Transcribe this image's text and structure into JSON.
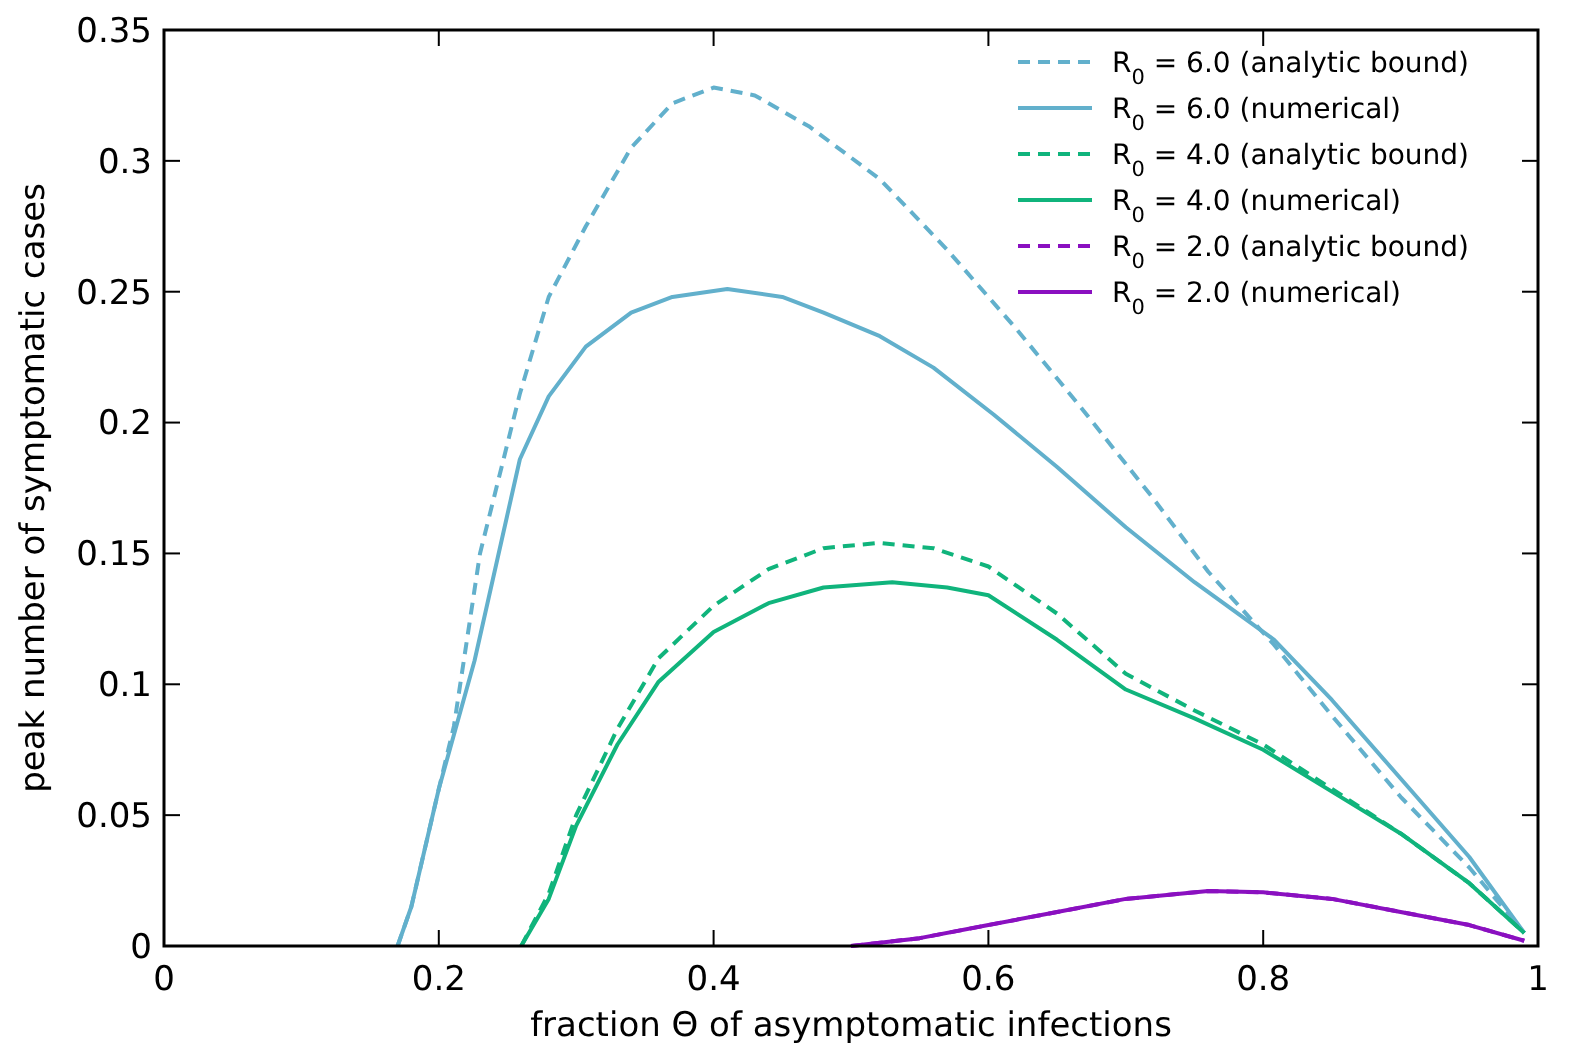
{
  "chart_data": {
    "type": "line",
    "xlabel": "fraction Θ of asymptomatic infections",
    "ylabel": "peak number of symptomatic cases",
    "xlim": [
      0,
      1
    ],
    "ylim": [
      0,
      0.35
    ],
    "xticks": [
      0,
      0.2,
      0.4,
      0.6,
      0.8,
      1
    ],
    "yticks": [
      0,
      0.05,
      0.1,
      0.15,
      0.2,
      0.25,
      0.3,
      0.35
    ],
    "legend": "top right",
    "marker": "none",
    "series": [
      {
        "name": "R$_{0}$ = 6.0 (analytic bound)",
        "color": "#62b0cc",
        "line_style": "dashed",
        "x": [
          0.17,
          0.18,
          0.2,
          0.211,
          0.23,
          0.259,
          0.28,
          0.307,
          0.34,
          0.37,
          0.4,
          0.43,
          0.47,
          0.521,
          0.57,
          0.62,
          0.667,
          0.72,
          0.76,
          0.808,
          0.85,
          0.9,
          0.95,
          0.99
        ],
        "values": [
          0,
          0.015,
          0.06,
          0.084,
          0.15,
          0.211,
          0.248,
          0.275,
          0.305,
          0.322,
          0.328,
          0.325,
          0.313,
          0.293,
          0.266,
          0.236,
          0.206,
          0.171,
          0.143,
          0.115,
          0.088,
          0.057,
          0.03,
          0.005
        ]
      },
      {
        "name": "R$_{0}$ = 6.0 (numerical)",
        "color": "#62b0cc",
        "line_style": "solid",
        "x": [
          0.17,
          0.18,
          0.2,
          0.226,
          0.259,
          0.28,
          0.307,
          0.34,
          0.37,
          0.41,
          0.45,
          0.48,
          0.521,
          0.56,
          0.604,
          0.65,
          0.7,
          0.75,
          0.808,
          0.85,
          0.9,
          0.95,
          0.99
        ],
        "values": [
          0,
          0.015,
          0.06,
          0.109,
          0.186,
          0.21,
          0.229,
          0.242,
          0.248,
          0.251,
          0.248,
          0.242,
          0.233,
          0.221,
          0.203,
          0.183,
          0.16,
          0.139,
          0.117,
          0.094,
          0.064,
          0.034,
          0.005
        ]
      },
      {
        "name": "R$_{0}$ = 4.0 (analytic bound)",
        "color": "#10b47c",
        "line_style": "dashed",
        "x": [
          0.26,
          0.28,
          0.3,
          0.33,
          0.36,
          0.4,
          0.44,
          0.48,
          0.52,
          0.56,
          0.6,
          0.65,
          0.7,
          0.75,
          0.8,
          0.85,
          0.9,
          0.95,
          0.99
        ],
        "values": [
          0,
          0.02,
          0.05,
          0.083,
          0.11,
          0.13,
          0.144,
          0.152,
          0.154,
          0.152,
          0.145,
          0.127,
          0.104,
          0.09,
          0.077,
          0.06,
          0.043,
          0.024,
          0.005
        ]
      },
      {
        "name": "R$_{0}$ = 4.0 (numerical)",
        "color": "#10b47c",
        "line_style": "solid",
        "x": [
          0.26,
          0.28,
          0.3,
          0.33,
          0.36,
          0.4,
          0.44,
          0.48,
          0.53,
          0.57,
          0.6,
          0.65,
          0.7,
          0.75,
          0.8,
          0.85,
          0.9,
          0.95,
          0.99
        ],
        "values": [
          0,
          0.018,
          0.046,
          0.077,
          0.101,
          0.12,
          0.131,
          0.137,
          0.139,
          0.137,
          0.134,
          0.117,
          0.098,
          0.087,
          0.075,
          0.059,
          0.043,
          0.024,
          0.005
        ]
      },
      {
        "name": "R$_{0}$ = 2.0 (analytic bound)",
        "color": "#8a10c0",
        "line_style": "dashed",
        "x": [
          0.5,
          0.55,
          0.6,
          0.65,
          0.7,
          0.76,
          0.8,
          0.85,
          0.9,
          0.95,
          0.99
        ],
        "values": [
          0,
          0.003,
          0.008,
          0.013,
          0.018,
          0.021,
          0.0205,
          0.018,
          0.013,
          0.008,
          0.002
        ]
      },
      {
        "name": "R$_{0}$ = 2.0 (numerical)",
        "color": "#8a10c0",
        "line_style": "solid",
        "x": [
          0.5,
          0.55,
          0.6,
          0.65,
          0.7,
          0.76,
          0.8,
          0.85,
          0.9,
          0.95,
          0.99
        ],
        "values": [
          0,
          0.003,
          0.008,
          0.013,
          0.018,
          0.021,
          0.0205,
          0.018,
          0.013,
          0.008,
          0.002
        ]
      }
    ]
  }
}
